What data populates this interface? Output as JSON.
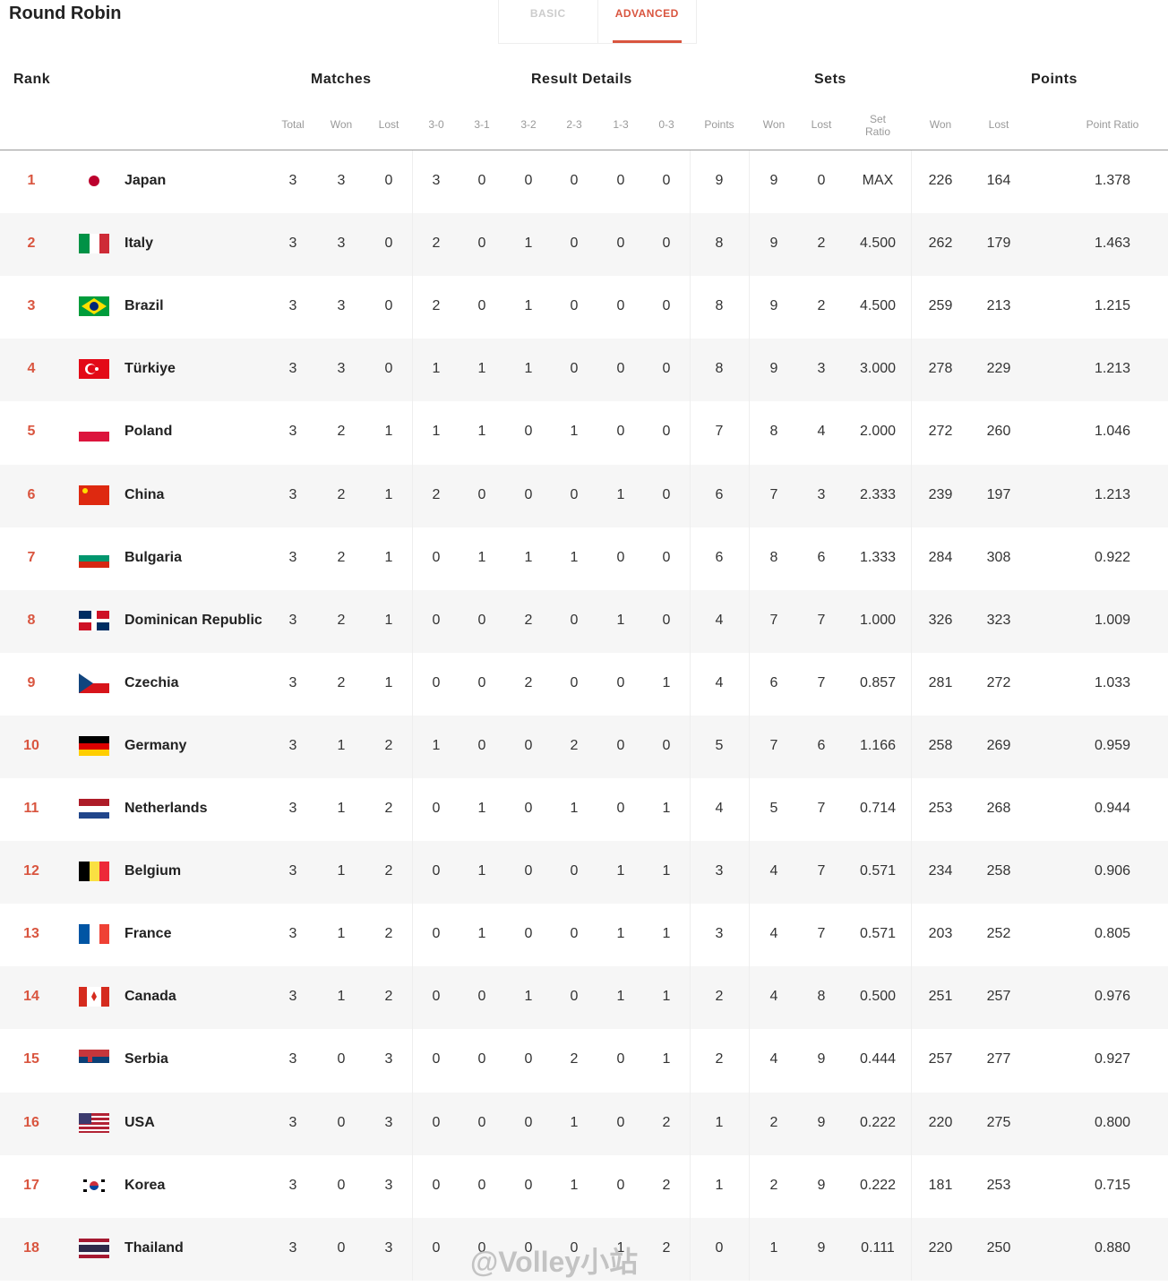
{
  "title": "Round Robin",
  "tabs": [
    {
      "label": "BASIC",
      "active": false
    },
    {
      "label": "ADVANCED",
      "active": true
    }
  ],
  "accent_color": "#d9553f",
  "groups": {
    "rank": "Rank",
    "matches": "Matches",
    "result_details": "Result Details",
    "sets": "Sets",
    "points": "Points"
  },
  "subheaders": [
    "Total",
    "Won",
    "Lost",
    "3-0",
    "3-1",
    "3-2",
    "2-3",
    "1-3",
    "0-3",
    "Points",
    "Won",
    "Lost",
    "Set Ratio",
    "Won",
    "Lost",
    "Point Ratio"
  ],
  "rows": [
    {
      "rank": "1",
      "flag": "japan",
      "team": "Japan",
      "v": [
        "3",
        "3",
        "0",
        "3",
        "0",
        "0",
        "0",
        "0",
        "0",
        "9",
        "9",
        "0",
        "MAX",
        "226",
        "164",
        "1.378"
      ]
    },
    {
      "rank": "2",
      "flag": "italy",
      "team": "Italy",
      "v": [
        "3",
        "3",
        "0",
        "2",
        "0",
        "1",
        "0",
        "0",
        "0",
        "8",
        "9",
        "2",
        "4.500",
        "262",
        "179",
        "1.463"
      ]
    },
    {
      "rank": "3",
      "flag": "brazil",
      "team": "Brazil",
      "v": [
        "3",
        "3",
        "0",
        "2",
        "0",
        "1",
        "0",
        "0",
        "0",
        "8",
        "9",
        "2",
        "4.500",
        "259",
        "213",
        "1.215"
      ]
    },
    {
      "rank": "4",
      "flag": "turkiye",
      "team": "Türkiye",
      "v": [
        "3",
        "3",
        "0",
        "1",
        "1",
        "1",
        "0",
        "0",
        "0",
        "8",
        "9",
        "3",
        "3.000",
        "278",
        "229",
        "1.213"
      ]
    },
    {
      "rank": "5",
      "flag": "poland",
      "team": "Poland",
      "v": [
        "3",
        "2",
        "1",
        "1",
        "1",
        "0",
        "1",
        "0",
        "0",
        "7",
        "8",
        "4",
        "2.000",
        "272",
        "260",
        "1.046"
      ]
    },
    {
      "rank": "6",
      "flag": "china",
      "team": "China",
      "v": [
        "3",
        "2",
        "1",
        "2",
        "0",
        "0",
        "0",
        "1",
        "0",
        "6",
        "7",
        "3",
        "2.333",
        "239",
        "197",
        "1.213"
      ]
    },
    {
      "rank": "7",
      "flag": "bulgaria",
      "team": "Bulgaria",
      "v": [
        "3",
        "2",
        "1",
        "0",
        "1",
        "1",
        "1",
        "0",
        "0",
        "6",
        "8",
        "6",
        "1.333",
        "284",
        "308",
        "0.922"
      ]
    },
    {
      "rank": "8",
      "flag": "dominican",
      "team": "Dominican Republic",
      "v": [
        "3",
        "2",
        "1",
        "0",
        "0",
        "2",
        "0",
        "1",
        "0",
        "4",
        "7",
        "7",
        "1.000",
        "326",
        "323",
        "1.009"
      ]
    },
    {
      "rank": "9",
      "flag": "czechia",
      "team": "Czechia",
      "v": [
        "3",
        "2",
        "1",
        "0",
        "0",
        "2",
        "0",
        "0",
        "1",
        "4",
        "6",
        "7",
        "0.857",
        "281",
        "272",
        "1.033"
      ]
    },
    {
      "rank": "10",
      "flag": "germany",
      "team": "Germany",
      "v": [
        "3",
        "1",
        "2",
        "1",
        "0",
        "0",
        "2",
        "0",
        "0",
        "5",
        "7",
        "6",
        "1.166",
        "258",
        "269",
        "0.959"
      ]
    },
    {
      "rank": "11",
      "flag": "netherlands",
      "team": "Netherlands",
      "v": [
        "3",
        "1",
        "2",
        "0",
        "1",
        "0",
        "1",
        "0",
        "1",
        "4",
        "5",
        "7",
        "0.714",
        "253",
        "268",
        "0.944"
      ]
    },
    {
      "rank": "12",
      "flag": "belgium",
      "team": "Belgium",
      "v": [
        "3",
        "1",
        "2",
        "0",
        "1",
        "0",
        "0",
        "1",
        "1",
        "3",
        "4",
        "7",
        "0.571",
        "234",
        "258",
        "0.906"
      ]
    },
    {
      "rank": "13",
      "flag": "france",
      "team": "France",
      "v": [
        "3",
        "1",
        "2",
        "0",
        "1",
        "0",
        "0",
        "1",
        "1",
        "3",
        "4",
        "7",
        "0.571",
        "203",
        "252",
        "0.805"
      ]
    },
    {
      "rank": "14",
      "flag": "canada",
      "team": "Canada",
      "v": [
        "3",
        "1",
        "2",
        "0",
        "0",
        "1",
        "0",
        "1",
        "1",
        "2",
        "4",
        "8",
        "0.500",
        "251",
        "257",
        "0.976"
      ]
    },
    {
      "rank": "15",
      "flag": "serbia",
      "team": "Serbia",
      "v": [
        "3",
        "0",
        "3",
        "0",
        "0",
        "0",
        "2",
        "0",
        "1",
        "2",
        "4",
        "9",
        "0.444",
        "257",
        "277",
        "0.927"
      ]
    },
    {
      "rank": "16",
      "flag": "usa",
      "team": "USA",
      "v": [
        "3",
        "0",
        "3",
        "0",
        "0",
        "0",
        "1",
        "0",
        "2",
        "1",
        "2",
        "9",
        "0.222",
        "220",
        "275",
        "0.800"
      ]
    },
    {
      "rank": "17",
      "flag": "korea",
      "team": "Korea",
      "v": [
        "3",
        "0",
        "3",
        "0",
        "0",
        "0",
        "1",
        "0",
        "2",
        "1",
        "2",
        "9",
        "0.222",
        "181",
        "253",
        "0.715"
      ]
    },
    {
      "rank": "18",
      "flag": "thailand",
      "team": "Thailand",
      "v": [
        "3",
        "0",
        "3",
        "0",
        "0",
        "0",
        "0",
        "1",
        "2",
        "0",
        "1",
        "9",
        "0.111",
        "220",
        "250",
        "0.880"
      ]
    }
  ],
  "watermark": "@Volley小站"
}
